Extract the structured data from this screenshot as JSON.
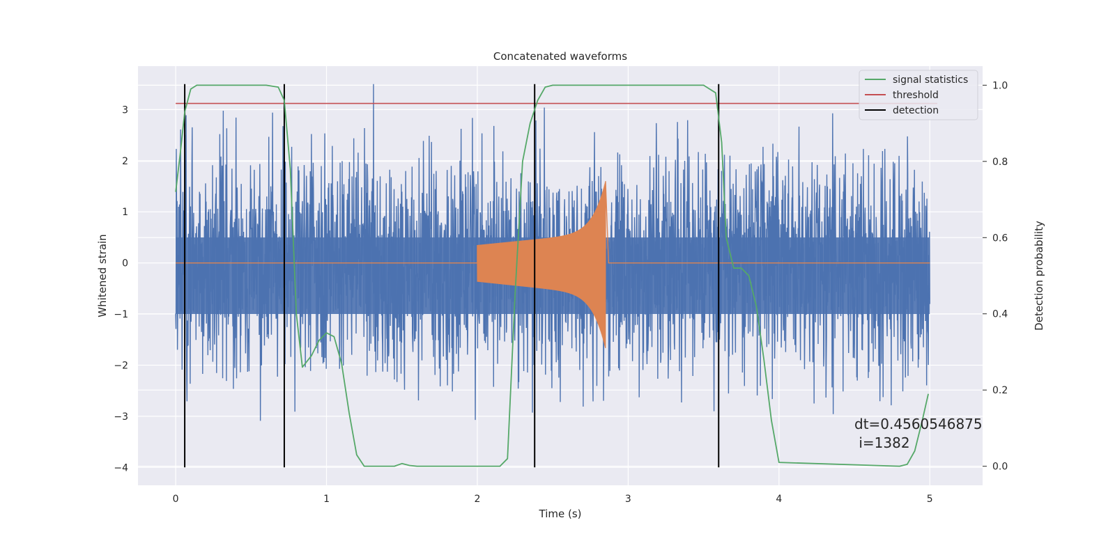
{
  "chart_data": {
    "type": "line",
    "title": "Concatenated waveforms",
    "xlabel": "Time (s)",
    "ylabel": "Whitened strain",
    "ylabel_right": "Detection probability",
    "xlim": [
      -0.25,
      5.35
    ],
    "ylim": [
      -4.35,
      3.85
    ],
    "ylim_right": [
      -0.05,
      1.05
    ],
    "xticks": [
      0,
      1,
      2,
      3,
      4,
      5
    ],
    "xtick_labels": [
      "0",
      "1",
      "2",
      "3",
      "4",
      "5"
    ],
    "yticks": [
      -4,
      -3,
      -2,
      -1,
      0,
      1,
      2,
      3
    ],
    "ytick_labels": [
      "−4",
      "−3",
      "−2",
      "−1",
      "0",
      "1",
      "2",
      "3"
    ],
    "yticks_right": [
      0.0,
      0.2,
      0.4,
      0.6,
      0.8,
      1.0
    ],
    "ytick_labels_right": [
      "0.0",
      "0.2",
      "0.4",
      "0.6",
      "0.8",
      "1.0"
    ],
    "grid": true,
    "legend_position": "top-right",
    "legend": [
      {
        "label": "signal statistics",
        "color": "#55a868"
      },
      {
        "label": "threshold",
        "color": "#c44e52"
      },
      {
        "label": "detection",
        "color": "#000000"
      }
    ],
    "colors": {
      "noise": "#4c72b0",
      "template": "#dd8452",
      "statistic": "#55a868",
      "threshold": "#c44e52",
      "detection": "#000000",
      "axes_bg": "#eaeaf2",
      "grid": "#ffffff"
    },
    "threshold_y": 3.12,
    "detections_x": [
      0.06,
      0.72,
      2.38,
      3.6
    ],
    "detection_ylim": [
      -4,
      3.5
    ],
    "template_span": [
      2.0,
      2.85
    ],
    "signal_statistic": {
      "x": [
        0,
        0.03,
        0.06,
        0.1,
        0.14,
        0.2,
        0.6,
        0.68,
        0.72,
        0.76,
        0.8,
        0.84,
        0.9,
        0.95,
        1.0,
        1.05,
        1.1,
        1.15,
        1.2,
        1.25,
        1.3,
        1.45,
        1.5,
        1.55,
        1.6,
        2.0,
        2.15,
        2.2,
        2.25,
        2.3,
        2.35,
        2.4,
        2.45,
        2.5,
        3.5,
        3.58,
        3.62,
        3.65,
        3.7,
        3.75,
        3.8,
        3.85,
        3.9,
        3.95,
        4.0,
        4.8,
        4.85,
        4.9,
        4.95,
        4.99
      ],
      "y": [
        0.72,
        0.82,
        0.93,
        0.99,
        1.0,
        1.0,
        1.0,
        0.995,
        0.96,
        0.78,
        0.4,
        0.26,
        0.29,
        0.33,
        0.35,
        0.34,
        0.27,
        0.14,
        0.03,
        0.0,
        0.0,
        0.0,
        0.007,
        0.002,
        0.0,
        0.0,
        0.0,
        0.02,
        0.45,
        0.8,
        0.9,
        0.96,
        0.995,
        1.0,
        1.0,
        0.98,
        0.85,
        0.6,
        0.52,
        0.52,
        0.5,
        0.42,
        0.28,
        0.12,
        0.01,
        0.0,
        0.005,
        0.04,
        0.12,
        0.19
      ]
    },
    "annotation": [
      "dt=0.4560546875",
      " i=1382"
    ]
  }
}
